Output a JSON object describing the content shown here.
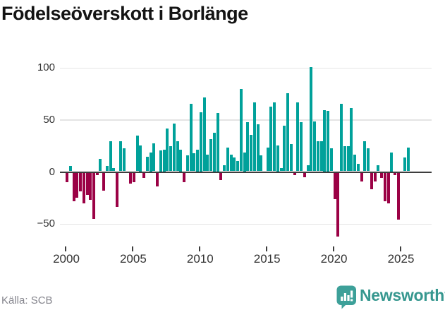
{
  "chart_data": {
    "type": "bar",
    "title": "Födelseöverskott i Borlänge",
    "frequency": "quarterly",
    "start": "2000 Q1",
    "end": "2025 Q3",
    "values": [
      -9,
      5,
      -27,
      -24,
      -18,
      -29,
      -21,
      -26,
      -44,
      -2,
      12,
      -17,
      5,
      29,
      3,
      -33,
      29,
      22,
      0,
      -10,
      -9,
      34,
      25,
      -5,
      14,
      18,
      27,
      -13,
      20,
      21,
      41,
      24,
      46,
      29,
      21,
      -9,
      15,
      65,
      17,
      21,
      57,
      71,
      16,
      31,
      37,
      56,
      -7,
      6,
      23,
      16,
      13,
      10,
      79,
      18,
      47,
      35,
      66,
      45,
      15,
      0,
      23,
      62,
      66,
      25,
      3,
      44,
      75,
      26,
      -2,
      66,
      47,
      -4,
      6,
      100,
      48,
      29,
      29,
      59,
      58,
      22,
      -25,
      -61,
      65,
      24,
      24,
      61,
      16,
      7,
      -8,
      29,
      22,
      -16,
      -8,
      6,
      -5,
      -27,
      -29,
      18,
      -2,
      -45,
      0,
      13,
      23
    ],
    "xticks": [
      2000,
      2005,
      2010,
      2015,
      2020,
      2025
    ],
    "yticks": [
      100,
      50,
      0,
      -50
    ],
    "ylim": [
      -70,
      110
    ],
    "grid": true,
    "legend": "none",
    "positive_color": "#00A19A",
    "negative_color": "#9B0145",
    "axis_color": "#3d3d3d",
    "source": "Källa: SCB"
  },
  "footer": {
    "source": "Källa: SCB",
    "brand": "Newsworthy",
    "logo_icon": "newsworthy-bar-chart-speech-bubble-icon",
    "logo_color": "#3DA099",
    "brand_text_color": "#36978F"
  }
}
